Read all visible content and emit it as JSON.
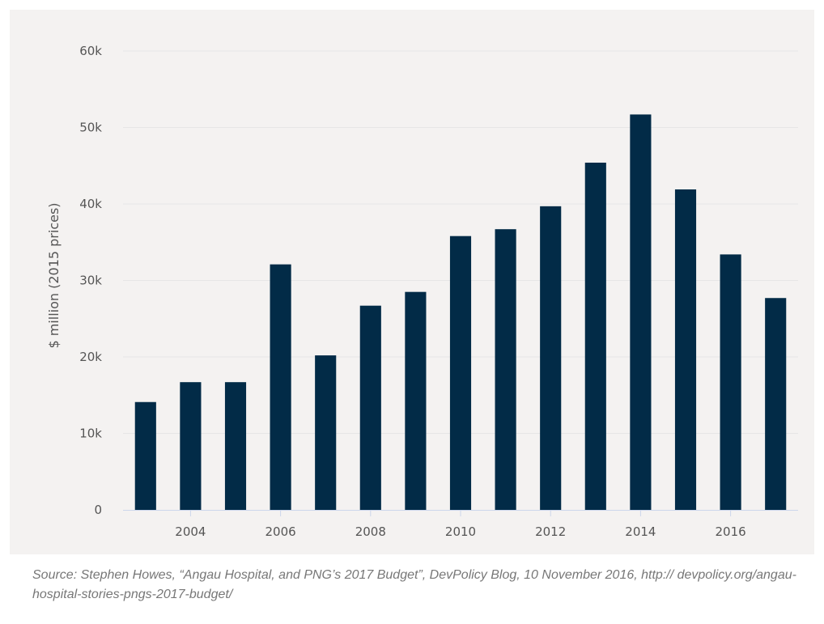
{
  "chart_data": {
    "type": "bar",
    "categories": [
      "2003",
      "2004",
      "2005",
      "2006",
      "2007",
      "2008",
      "2009",
      "2010",
      "2011",
      "2012",
      "2013",
      "2014",
      "2015",
      "2016",
      "2017"
    ],
    "values": [
      14100,
      16700,
      16700,
      32100,
      20200,
      26700,
      28500,
      35800,
      36700,
      39700,
      45400,
      51700,
      41900,
      33400,
      27700
    ],
    "x_tick_labels": [
      "2004",
      "2006",
      "2008",
      "2010",
      "2012",
      "2014",
      "2016"
    ],
    "y_ticks": [
      0,
      10000,
      20000,
      30000,
      40000,
      50000,
      60000
    ],
    "y_tick_labels": [
      "0",
      "10k",
      "20k",
      "30k",
      "40k",
      "50k",
      "60k"
    ],
    "ylim": [
      0,
      60000
    ],
    "title": "",
    "xlabel": "",
    "ylabel": "$ million (2015 prices)",
    "grid": true,
    "legend": "none",
    "colors": {
      "bar": "#022b47",
      "gridline": "#e6e6e6",
      "axis_line": "#ccd6eb",
      "background": "#f4f2f1"
    }
  },
  "source": "Source: Stephen Howes, “Angau Hospital, and PNG’s 2017 Budget”, DevPolicy Blog, 10 November 2016, http:// devpolicy.org/angau-hospital-stories-pngs-2017-budget/"
}
